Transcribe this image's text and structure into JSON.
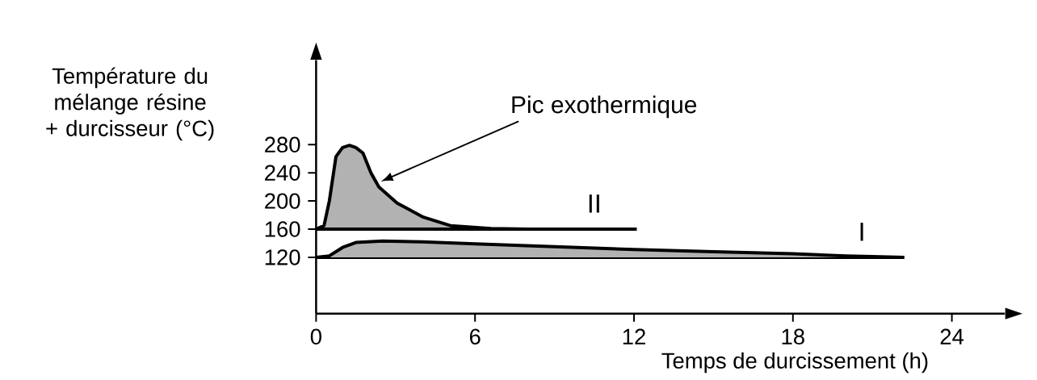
{
  "chart_data": {
    "type": "line",
    "xlabel": "Temps de durcissement (h)",
    "ylabel": "Température du mélange résine + durcisseur (°C)",
    "xlim": [
      0,
      26
    ],
    "ylim": [
      40,
      400
    ],
    "xticks": [
      0,
      6,
      12,
      18,
      24
    ],
    "yticks": [
      120,
      160,
      200,
      240,
      280
    ],
    "grid": false,
    "marker": "none",
    "line_style": "solid",
    "series": [
      {
        "name": "II",
        "color": "#000000",
        "x": [
          0,
          0.3,
          0.5,
          0.75,
          1.0,
          1.26,
          1.5,
          1.77,
          2.07,
          2.37,
          3.06,
          4.05,
          5.07,
          6.6,
          8,
          12.1
        ],
        "values": [
          160,
          165,
          200,
          263,
          276,
          279,
          276,
          268,
          240,
          220,
          197,
          177,
          165,
          161,
          160,
          160
        ],
        "lower": [
          160,
          160,
          160,
          160,
          160,
          160,
          160,
          160,
          160,
          160,
          160,
          160,
          160,
          160,
          160,
          160
        ],
        "upper": [
          160,
          165,
          200,
          263,
          276,
          279,
          276,
          268,
          240,
          220,
          197,
          177,
          165,
          161,
          160,
          160
        ]
      },
      {
        "color": "#000000",
        "x": [
          0,
          12.1
        ],
        "values": [
          160,
          160
        ]
      },
      {
        "color": "#000000",
        "x": [
          0,
          22.2
        ],
        "values": [
          120,
          120
        ]
      },
      {
        "name": "I",
        "color": "#000000",
        "x": [
          0,
          0.5,
          1,
          1.5,
          2.5,
          4,
          6,
          9,
          12,
          15,
          18,
          20,
          21,
          22.2
        ],
        "values": [
          120,
          122,
          134,
          141,
          143,
          142,
          139,
          135,
          131,
          128,
          125,
          122,
          121,
          120
        ],
        "lower": [
          120,
          120,
          120,
          120,
          120,
          120,
          120,
          120,
          120,
          120,
          120,
          120,
          120,
          120
        ],
        "upper": [
          120,
          122,
          134,
          141,
          143,
          142,
          139,
          135,
          131,
          128,
          125,
          122,
          121,
          120
        ]
      }
    ],
    "annotations": [
      "Pic exothermique"
    ]
  }
}
